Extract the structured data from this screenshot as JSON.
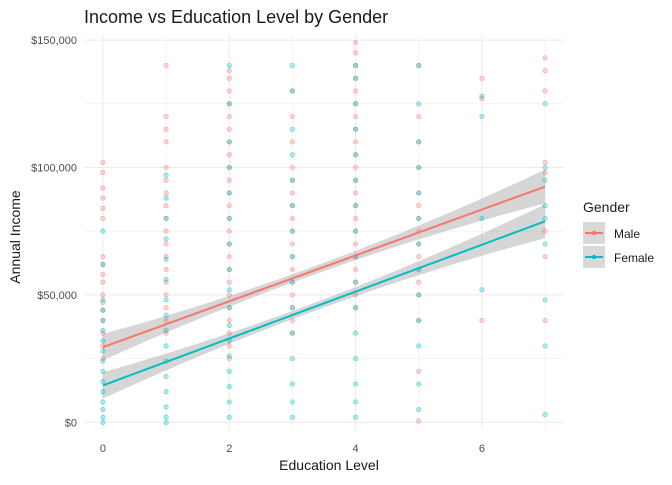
{
  "chart_data": {
    "type": "scatter",
    "title": "Income vs Education Level by Gender",
    "xlabel": "Education Level",
    "ylabel": "Annual Income",
    "xlim": [
      -0.3,
      7.3
    ],
    "ylim": [
      -3000,
      152000
    ],
    "x_ticks": [
      0,
      2,
      4,
      6
    ],
    "y_ticks": [
      0,
      50000,
      100000,
      150000
    ],
    "y_tick_labels": [
      "$0",
      "$50,000",
      "$100,000",
      "$150,000"
    ],
    "grid": true,
    "legend": {
      "title": "Gender",
      "placement": "right"
    },
    "series": [
      {
        "name": "Male",
        "color": "#F8766D",
        "trend": {
          "intercept": 29500,
          "slope": 9000
        },
        "points": [
          {
            "x": 0,
            "y": 102000
          },
          {
            "x": 0,
            "y": 98000
          },
          {
            "x": 0,
            "y": 92000
          },
          {
            "x": 0,
            "y": 88000
          },
          {
            "x": 0,
            "y": 84000
          },
          {
            "x": 0,
            "y": 80000
          },
          {
            "x": 0,
            "y": 65000
          },
          {
            "x": 0,
            "y": 62000
          },
          {
            "x": 0,
            "y": 58000
          },
          {
            "x": 0,
            "y": 55000
          },
          {
            "x": 0,
            "y": 50000
          },
          {
            "x": 0,
            "y": 47000
          },
          {
            "x": 0,
            "y": 44000
          },
          {
            "x": 0,
            "y": 40000
          },
          {
            "x": 0,
            "y": 35000
          },
          {
            "x": 0,
            "y": 30000
          },
          {
            "x": 0,
            "y": 25000
          },
          {
            "x": 1,
            "y": 140000
          },
          {
            "x": 1,
            "y": 120000
          },
          {
            "x": 1,
            "y": 115000
          },
          {
            "x": 1,
            "y": 110000
          },
          {
            "x": 1,
            "y": 100000
          },
          {
            "x": 1,
            "y": 95000
          },
          {
            "x": 1,
            "y": 90000
          },
          {
            "x": 1,
            "y": 85000
          },
          {
            "x": 1,
            "y": 80000
          },
          {
            "x": 1,
            "y": 75000
          },
          {
            "x": 1,
            "y": 70000
          },
          {
            "x": 1,
            "y": 65000
          },
          {
            "x": 1,
            "y": 60000
          },
          {
            "x": 1,
            "y": 55000
          },
          {
            "x": 1,
            "y": 50000
          },
          {
            "x": 1,
            "y": 45000
          },
          {
            "x": 1,
            "y": 40000
          },
          {
            "x": 1,
            "y": 35000
          },
          {
            "x": 2,
            "y": 138000
          },
          {
            "x": 2,
            "y": 135000
          },
          {
            "x": 2,
            "y": 130000
          },
          {
            "x": 2,
            "y": 125000
          },
          {
            "x": 2,
            "y": 120000
          },
          {
            "x": 2,
            "y": 115000
          },
          {
            "x": 2,
            "y": 110000
          },
          {
            "x": 2,
            "y": 105000
          },
          {
            "x": 2,
            "y": 100000
          },
          {
            "x": 2,
            "y": 95000
          },
          {
            "x": 2,
            "y": 90000
          },
          {
            "x": 2,
            "y": 85000
          },
          {
            "x": 2,
            "y": 80000
          },
          {
            "x": 2,
            "y": 75000
          },
          {
            "x": 2,
            "y": 70000
          },
          {
            "x": 2,
            "y": 65000
          },
          {
            "x": 2,
            "y": 60000
          },
          {
            "x": 2,
            "y": 55000
          },
          {
            "x": 2,
            "y": 50000
          },
          {
            "x": 2,
            "y": 45000
          },
          {
            "x": 2,
            "y": 40000
          },
          {
            "x": 2,
            "y": 35000
          },
          {
            "x": 2,
            "y": 30000
          },
          {
            "x": 2,
            "y": 25000
          },
          {
            "x": 3,
            "y": 130000
          },
          {
            "x": 3,
            "y": 120000
          },
          {
            "x": 3,
            "y": 110000
          },
          {
            "x": 3,
            "y": 100000
          },
          {
            "x": 3,
            "y": 95000
          },
          {
            "x": 3,
            "y": 90000
          },
          {
            "x": 3,
            "y": 85000
          },
          {
            "x": 3,
            "y": 80000
          },
          {
            "x": 3,
            "y": 75000
          },
          {
            "x": 3,
            "y": 70000
          },
          {
            "x": 3,
            "y": 65000
          },
          {
            "x": 3,
            "y": 60000
          },
          {
            "x": 3,
            "y": 55000
          },
          {
            "x": 3,
            "y": 50000
          },
          {
            "x": 3,
            "y": 45000
          },
          {
            "x": 3,
            "y": 40000
          },
          {
            "x": 3,
            "y": 35000
          },
          {
            "x": 4,
            "y": 149000
          },
          {
            "x": 4,
            "y": 145000
          },
          {
            "x": 4,
            "y": 140000
          },
          {
            "x": 4,
            "y": 135000
          },
          {
            "x": 4,
            "y": 130000
          },
          {
            "x": 4,
            "y": 125000
          },
          {
            "x": 4,
            "y": 120000
          },
          {
            "x": 4,
            "y": 115000
          },
          {
            "x": 4,
            "y": 110000
          },
          {
            "x": 4,
            "y": 105000
          },
          {
            "x": 4,
            "y": 100000
          },
          {
            "x": 4,
            "y": 95000
          },
          {
            "x": 4,
            "y": 90000
          },
          {
            "x": 4,
            "y": 85000
          },
          {
            "x": 4,
            "y": 80000
          },
          {
            "x": 4,
            "y": 75000
          },
          {
            "x": 4,
            "y": 70000
          },
          {
            "x": 4,
            "y": 65000
          },
          {
            "x": 4,
            "y": 60000
          },
          {
            "x": 4,
            "y": 55000
          },
          {
            "x": 4,
            "y": 50000
          },
          {
            "x": 4,
            "y": 45000
          },
          {
            "x": 5,
            "y": 140000
          },
          {
            "x": 5,
            "y": 120000
          },
          {
            "x": 5,
            "y": 110000
          },
          {
            "x": 5,
            "y": 100000
          },
          {
            "x": 5,
            "y": 90000
          },
          {
            "x": 5,
            "y": 85000
          },
          {
            "x": 5,
            "y": 80000
          },
          {
            "x": 5,
            "y": 75000
          },
          {
            "x": 5,
            "y": 70000
          },
          {
            "x": 5,
            "y": 65000
          },
          {
            "x": 5,
            "y": 60000
          },
          {
            "x": 5,
            "y": 55000
          },
          {
            "x": 5,
            "y": 50000
          },
          {
            "x": 5,
            "y": 40000
          },
          {
            "x": 5,
            "y": 20000
          },
          {
            "x": 5,
            "y": 500
          },
          {
            "x": 6,
            "y": 135000
          },
          {
            "x": 6,
            "y": 127000
          },
          {
            "x": 6,
            "y": 40000
          },
          {
            "x": 7,
            "y": 143000
          },
          {
            "x": 7,
            "y": 138000
          },
          {
            "x": 7,
            "y": 130000
          },
          {
            "x": 7,
            "y": 102000
          },
          {
            "x": 7,
            "y": 98000
          },
          {
            "x": 7,
            "y": 75000
          },
          {
            "x": 7,
            "y": 65000
          },
          {
            "x": 7,
            "y": 40000
          }
        ]
      },
      {
        "name": "Female",
        "color": "#00BFC4",
        "trend": {
          "intercept": 14500,
          "slope": 9200
        },
        "points": [
          {
            "x": 0,
            "y": 75000
          },
          {
            "x": 0,
            "y": 62000
          },
          {
            "x": 0,
            "y": 48000
          },
          {
            "x": 0,
            "y": 44000
          },
          {
            "x": 0,
            "y": 40000
          },
          {
            "x": 0,
            "y": 36000
          },
          {
            "x": 0,
            "y": 32000
          },
          {
            "x": 0,
            "y": 28000
          },
          {
            "x": 0,
            "y": 24000
          },
          {
            "x": 0,
            "y": 20000
          },
          {
            "x": 0,
            "y": 16000
          },
          {
            "x": 0,
            "y": 12000
          },
          {
            "x": 0,
            "y": 8000
          },
          {
            "x": 0,
            "y": 5000
          },
          {
            "x": 0,
            "y": 2000
          },
          {
            "x": 0,
            "y": 0
          },
          {
            "x": 1,
            "y": 97000
          },
          {
            "x": 1,
            "y": 88000
          },
          {
            "x": 1,
            "y": 80000
          },
          {
            "x": 1,
            "y": 72000
          },
          {
            "x": 1,
            "y": 64000
          },
          {
            "x": 1,
            "y": 56000
          },
          {
            "x": 1,
            "y": 48000
          },
          {
            "x": 1,
            "y": 42000
          },
          {
            "x": 1,
            "y": 36000
          },
          {
            "x": 1,
            "y": 30000
          },
          {
            "x": 1,
            "y": 24000
          },
          {
            "x": 1,
            "y": 18000
          },
          {
            "x": 1,
            "y": 12000
          },
          {
            "x": 1,
            "y": 6000
          },
          {
            "x": 1,
            "y": 2000
          },
          {
            "x": 1,
            "y": 0
          },
          {
            "x": 2,
            "y": 140000
          },
          {
            "x": 2,
            "y": 125000
          },
          {
            "x": 2,
            "y": 110000
          },
          {
            "x": 2,
            "y": 100000
          },
          {
            "x": 2,
            "y": 90000
          },
          {
            "x": 2,
            "y": 80000
          },
          {
            "x": 2,
            "y": 70000
          },
          {
            "x": 2,
            "y": 60000
          },
          {
            "x": 2,
            "y": 52000
          },
          {
            "x": 2,
            "y": 45000
          },
          {
            "x": 2,
            "y": 38000
          },
          {
            "x": 2,
            "y": 32000
          },
          {
            "x": 2,
            "y": 26000
          },
          {
            "x": 2,
            "y": 20000
          },
          {
            "x": 2,
            "y": 14000
          },
          {
            "x": 2,
            "y": 8000
          },
          {
            "x": 2,
            "y": 2000
          },
          {
            "x": 3,
            "y": 140000
          },
          {
            "x": 3,
            "y": 130000
          },
          {
            "x": 3,
            "y": 115000
          },
          {
            "x": 3,
            "y": 105000
          },
          {
            "x": 3,
            "y": 95000
          },
          {
            "x": 3,
            "y": 85000
          },
          {
            "x": 3,
            "y": 75000
          },
          {
            "x": 3,
            "y": 65000
          },
          {
            "x": 3,
            "y": 55000
          },
          {
            "x": 3,
            "y": 45000
          },
          {
            "x": 3,
            "y": 35000
          },
          {
            "x": 3,
            "y": 25000
          },
          {
            "x": 3,
            "y": 15000
          },
          {
            "x": 3,
            "y": 8000
          },
          {
            "x": 3,
            "y": 2000
          },
          {
            "x": 4,
            "y": 140000
          },
          {
            "x": 4,
            "y": 135000
          },
          {
            "x": 4,
            "y": 125000
          },
          {
            "x": 4,
            "y": 115000
          },
          {
            "x": 4,
            "y": 105000
          },
          {
            "x": 4,
            "y": 95000
          },
          {
            "x": 4,
            "y": 85000
          },
          {
            "x": 4,
            "y": 75000
          },
          {
            "x": 4,
            "y": 65000
          },
          {
            "x": 4,
            "y": 55000
          },
          {
            "x": 4,
            "y": 45000
          },
          {
            "x": 4,
            "y": 35000
          },
          {
            "x": 4,
            "y": 25000
          },
          {
            "x": 4,
            "y": 15000
          },
          {
            "x": 4,
            "y": 8000
          },
          {
            "x": 4,
            "y": 2000
          },
          {
            "x": 5,
            "y": 140000
          },
          {
            "x": 5,
            "y": 125000
          },
          {
            "x": 5,
            "y": 110000
          },
          {
            "x": 5,
            "y": 100000
          },
          {
            "x": 5,
            "y": 90000
          },
          {
            "x": 5,
            "y": 80000
          },
          {
            "x": 5,
            "y": 70000
          },
          {
            "x": 5,
            "y": 60000
          },
          {
            "x": 5,
            "y": 50000
          },
          {
            "x": 5,
            "y": 40000
          },
          {
            "x": 5,
            "y": 30000
          },
          {
            "x": 5,
            "y": 15000
          },
          {
            "x": 5,
            "y": 5000
          },
          {
            "x": 6,
            "y": 128000
          },
          {
            "x": 6,
            "y": 120000
          },
          {
            "x": 6,
            "y": 80000
          },
          {
            "x": 6,
            "y": 52000
          },
          {
            "x": 7,
            "y": 125000
          },
          {
            "x": 7,
            "y": 100000
          },
          {
            "x": 7,
            "y": 95000
          },
          {
            "x": 7,
            "y": 85000
          },
          {
            "x": 7,
            "y": 80000
          },
          {
            "x": 7,
            "y": 70000
          },
          {
            "x": 7,
            "y": 48000
          },
          {
            "x": 7,
            "y": 30000
          },
          {
            "x": 7,
            "y": 3000
          }
        ]
      }
    ]
  }
}
